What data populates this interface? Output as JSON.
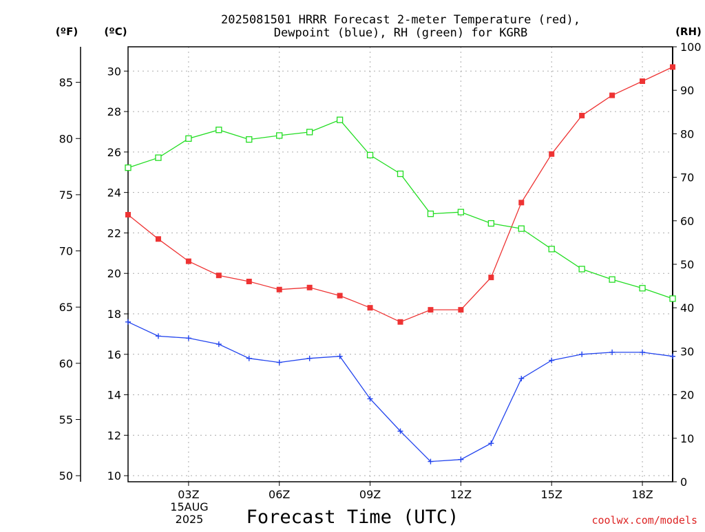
{
  "chart_data": {
    "type": "line",
    "title_lines": [
      "2025081501 HRRR Forecast 2-meter Temperature (red),",
      "Dewpoint (blue), RH (green) for KGRB"
    ],
    "xlabel": "Forecast Time (UTC)",
    "credit": "coolwx.com/models",
    "units": {
      "fahrenheit": "(ºF)",
      "celsius": "(ºC)",
      "rh": "(RH)"
    },
    "x": [
      1,
      2,
      3,
      4,
      5,
      6,
      7,
      8,
      9,
      10,
      11,
      12,
      13,
      14,
      15,
      16,
      17,
      18,
      19
    ],
    "xlim": [
      1,
      19
    ],
    "x_ticks": [
      {
        "x": 3,
        "label": "03Z"
      },
      {
        "x": 6,
        "label": "06Z"
      },
      {
        "x": 9,
        "label": "09Z"
      },
      {
        "x": 12,
        "label": "12Z"
      },
      {
        "x": 15,
        "label": "15Z"
      },
      {
        "x": 18,
        "label": "18Z"
      }
    ],
    "date_label": [
      "15AUG",
      "2025"
    ],
    "y_celsius": {
      "lim": [
        9.7,
        31.2
      ],
      "ticks": [
        10,
        12,
        14,
        16,
        18,
        20,
        22,
        24,
        26,
        28,
        30
      ]
    },
    "y_fahrenheit": {
      "ticks": [
        50,
        55,
        60,
        65,
        70,
        75,
        80,
        85
      ]
    },
    "y_rh": {
      "lim": [
        0,
        100
      ],
      "ticks": [
        0,
        10,
        20,
        30,
        40,
        50,
        60,
        70,
        80,
        90,
        100
      ]
    },
    "grid": true,
    "series": [
      {
        "name": "Temperature (red)",
        "axis": "celsius",
        "color": "#ee3333",
        "marker": "filled-square",
        "values": [
          22.9,
          21.7,
          20.6,
          19.9,
          19.6,
          19.2,
          19.3,
          18.9,
          18.3,
          17.6,
          18.2,
          18.2,
          19.8,
          23.5,
          25.9,
          27.8,
          28.8,
          29.5,
          30.2
        ]
      },
      {
        "name": "Dewpoint (blue)",
        "axis": "celsius",
        "color": "#2244ee",
        "marker": "plus",
        "values": [
          17.6,
          16.9,
          16.8,
          16.5,
          15.8,
          15.6,
          15.8,
          15.9,
          13.8,
          12.2,
          10.7,
          10.8,
          11.6,
          14.8,
          15.7,
          16.0,
          16.1,
          16.1,
          15.9
        ]
      },
      {
        "name": "RH (green)",
        "axis": "rh",
        "color": "#22dd22",
        "marker": "open-square",
        "values": [
          72.2,
          74.5,
          78.9,
          80.9,
          78.7,
          79.6,
          80.4,
          83.2,
          75.1,
          70.8,
          61.6,
          62.0,
          59.4,
          58.2,
          53.5,
          48.9,
          46.5,
          44.5,
          42.1
        ]
      }
    ]
  }
}
